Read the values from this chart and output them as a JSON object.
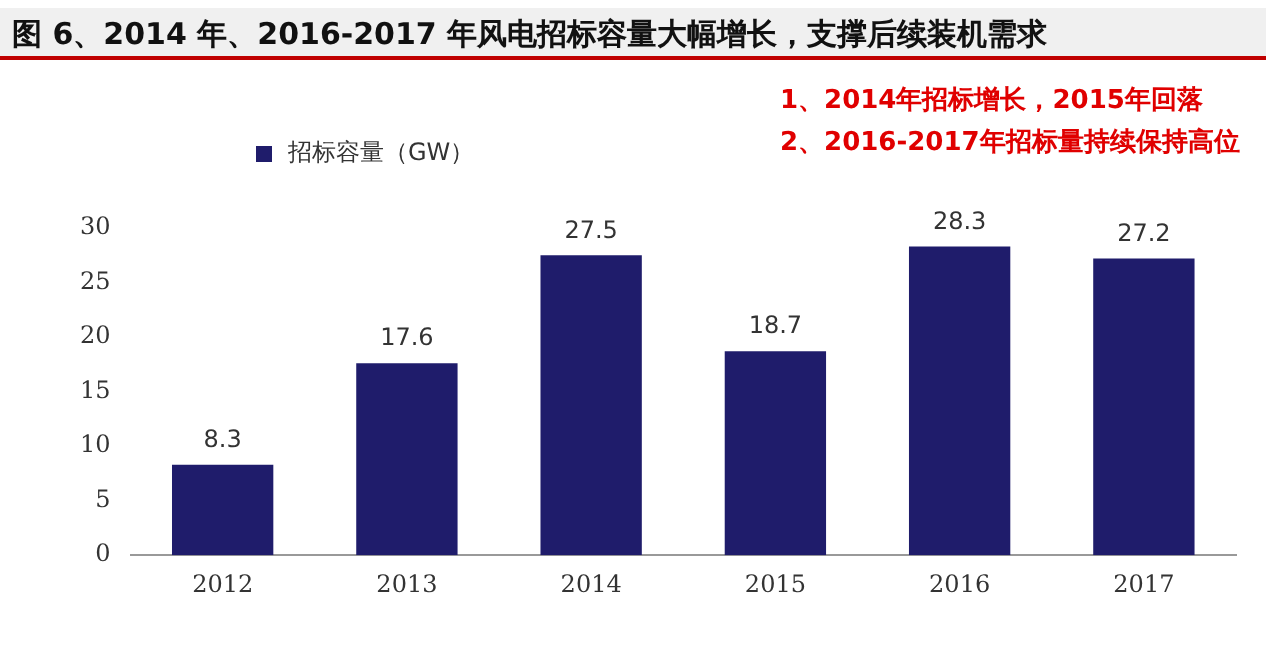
{
  "chart_data": {
    "type": "bar",
    "title": "图 6、2014 年、2016-2017 年风电招标容量大幅增长，支撑后续装机需求",
    "categories": [
      "2012",
      "2013",
      "2014",
      "2015",
      "2016",
      "2017"
    ],
    "series": [
      {
        "name": "招标容量（GW）",
        "color": "#1f1c6b",
        "values": [
          8.3,
          17.6,
          27.5,
          18.7,
          28.3,
          27.2
        ]
      }
    ],
    "ylim": [
      0,
      30
    ],
    "yticks": [
      0,
      5,
      10,
      15,
      20,
      25,
      30
    ],
    "grid": false,
    "legend": "top left",
    "data_labels": true,
    "annotations": [
      "1、2014年招标增长，2015年回落",
      "2、2016-2017年招标量持续保持高位"
    ]
  }
}
